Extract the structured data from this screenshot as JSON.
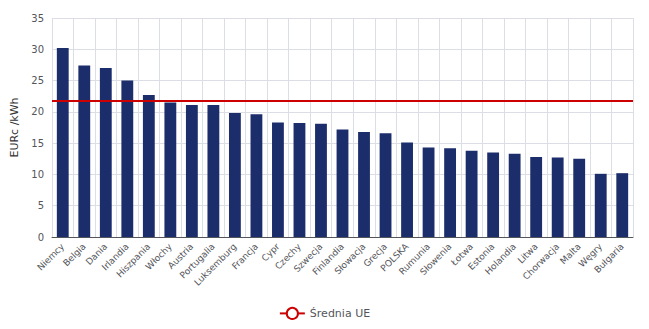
{
  "chart_data": {
    "type": "bar",
    "categories": [
      "Niemcy",
      "Belgia",
      "Dania",
      "Irlandia",
      "Hiszpania",
      "Włochy",
      "Austria",
      "Portugalia",
      "Luksemburg",
      "Francja",
      "Cypr",
      "Czechy",
      "Szwecja",
      "Finlandia",
      "Słowacja",
      "Grecja",
      "POLSKA",
      "Rumunia",
      "Słowenia",
      "Łotwa",
      "Estonia",
      "Holandia",
      "Litwa",
      "Chorwacja",
      "Malta",
      "Węgry",
      "Bułgaria"
    ],
    "values": [
      30.2,
      27.4,
      27.0,
      25.0,
      22.7,
      21.5,
      21.1,
      21.1,
      19.8,
      19.6,
      18.3,
      18.2,
      18.1,
      17.2,
      16.8,
      16.6,
      15.1,
      14.3,
      14.2,
      13.8,
      13.5,
      13.3,
      12.8,
      12.7,
      12.5,
      10.1,
      10.2
    ],
    "color": "#1C2D6B",
    "average_line": {
      "name": "Średnia UE",
      "value": 21.7,
      "color": "#CC0000"
    },
    "ylabel": "EURc /kWh",
    "ylim": [
      0,
      35
    ],
    "yticks": [
      0,
      5,
      10,
      15,
      20,
      25,
      30,
      35
    ],
    "grid": true,
    "legend": "bottom"
  }
}
